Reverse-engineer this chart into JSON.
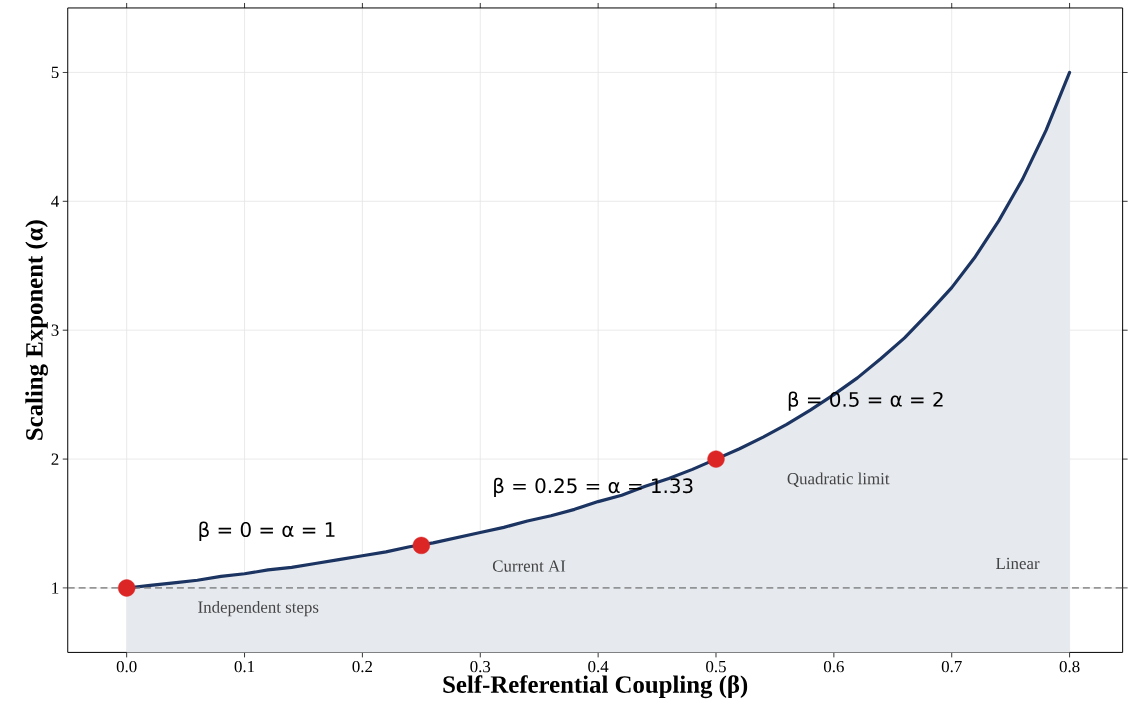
{
  "chart_data": {
    "type": "area",
    "xlabel": "Self-Referential Coupling (β)",
    "ylabel": "Scaling Exponent (α)",
    "xlim": [
      -0.05,
      0.845
    ],
    "ylim": [
      0.5,
      5.5
    ],
    "xticks": [
      {
        "value": 0,
        "label": "0.0"
      },
      0.1,
      0.2,
      0.3,
      0.4,
      0.5,
      0.6,
      0.7,
      0.8
    ],
    "yticks": [
      1,
      2,
      3,
      4,
      5
    ],
    "grid": true,
    "series": [
      {
        "color": "#1c3461",
        "x": [
          0,
          0.02,
          0.04,
          0.06,
          0.08,
          0.1,
          0.12,
          0.14,
          0.16,
          0.18,
          0.2,
          0.22,
          0.24,
          0.26,
          0.28,
          0.3,
          0.32,
          0.34,
          0.36,
          0.38,
          0.4,
          0.42,
          0.44,
          0.46,
          0.48,
          0.5,
          0.52,
          0.54,
          0.56,
          0.58,
          0.6,
          0.62,
          0.64,
          0.66,
          0.68,
          0.7,
          0.72,
          0.74,
          0.76,
          0.78,
          0.8
        ],
        "values": [
          1,
          1.02,
          1.04,
          1.06,
          1.09,
          1.11,
          1.14,
          1.16,
          1.19,
          1.22,
          1.25,
          1.28,
          1.32,
          1.35,
          1.39,
          1.43,
          1.47,
          1.52,
          1.56,
          1.61,
          1.67,
          1.72,
          1.79,
          1.85,
          1.92,
          2,
          2.08,
          2.17,
          2.27,
          2.38,
          2.5,
          2.63,
          2.78,
          2.94,
          3.13,
          3.33,
          3.57,
          3.85,
          4.17,
          4.55,
          5
        ]
      },
      {
        "type": "scatter",
        "color": "#dc2626",
        "x": [
          0,
          0.25,
          0.5
        ],
        "values": [
          1,
          1.33,
          2
        ]
      }
    ],
    "ref_lines": [
      {
        "axis": "y",
        "value": 1,
        "color": "#777777",
        "line_style": "dashed"
      }
    ],
    "annotations": [
      "β = 0 = α = 1",
      "β = 0.25 = α = 1.33",
      "β = 0.5 = α = 2",
      "Independent steps",
      "Current AI",
      "Quadratic limit",
      "Linear"
    ]
  }
}
